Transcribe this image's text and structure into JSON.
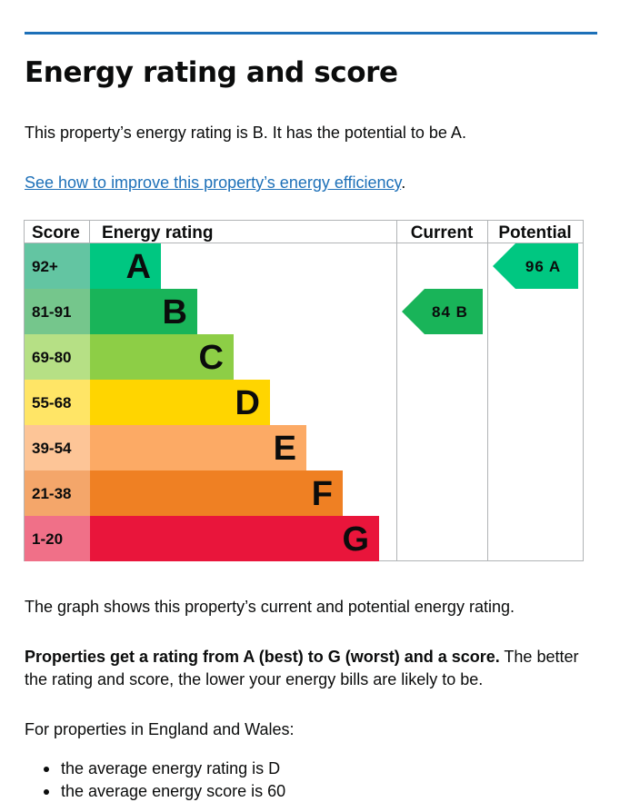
{
  "page": {
    "title": "Energy rating and score",
    "rating_text": "This property’s energy rating is B. It has the potential to be A.",
    "improve_link": "See how to improve this property’s energy efficiency",
    "improve_suffix": ".",
    "graph_note": "The graph shows this property’s current and potential energy rating.",
    "ratings_bold": "Properties get a rating from A (best) to G (worst) and a score.",
    "ratings_rest": " The better the rating and score, the lower your energy bills are likely to be.",
    "average_intro": "For properties in England and Wales:",
    "average_items": [
      "the average energy rating is D",
      "the average energy score is 60"
    ]
  },
  "chart_data": {
    "type": "bar",
    "headers": [
      "Score",
      "Energy rating",
      "Current",
      "Potential"
    ],
    "bands": [
      {
        "letter": "A",
        "score_range": "92+",
        "color": "#00c781",
        "score_color": "#63c5a2"
      },
      {
        "letter": "B",
        "score_range": "81-91",
        "color": "#19b459",
        "score_color": "#75c68c"
      },
      {
        "letter": "C",
        "score_range": "69-80",
        "color": "#8dce46",
        "score_color": "#b6e085"
      },
      {
        "letter": "D",
        "score_range": "55-68",
        "color": "#ffd500",
        "score_color": "#ffe566"
      },
      {
        "letter": "E",
        "score_range": "39-54",
        "color": "#fcaa65",
        "score_color": "#fdc597"
      },
      {
        "letter": "F",
        "score_range": "21-38",
        "color": "#ef8023",
        "score_color": "#f4a66a"
      },
      {
        "letter": "G",
        "score_range": "1-20",
        "color": "#e9153b",
        "score_color": "#f07088"
      }
    ],
    "current": {
      "score": 84,
      "letter": "B",
      "label": "84 B",
      "color": "#19b459"
    },
    "potential": {
      "score": 96,
      "letter": "A",
      "label": "96 A",
      "color": "#00c781"
    }
  }
}
